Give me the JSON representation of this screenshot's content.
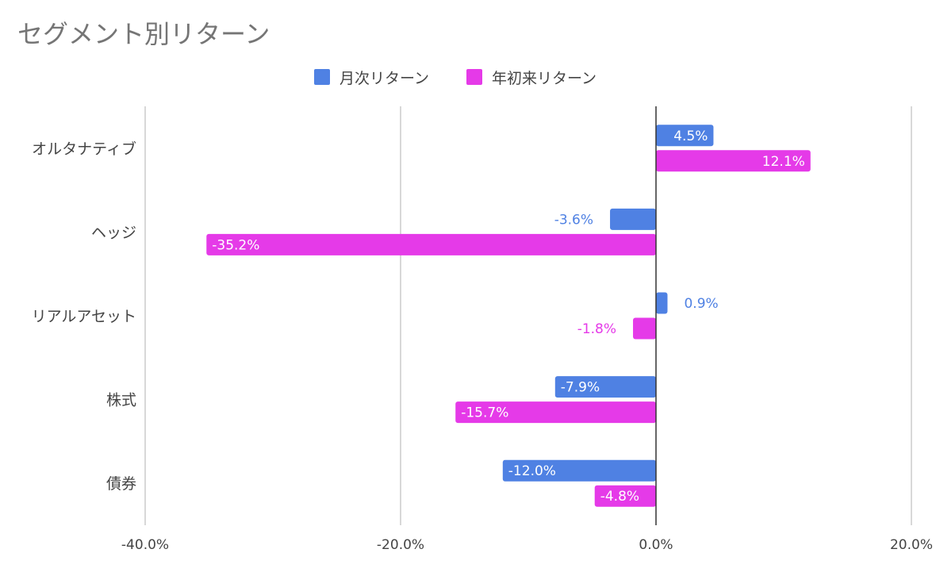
{
  "chart_data": {
    "type": "bar",
    "orientation": "horizontal",
    "title": "セグメント別リターン",
    "categories": [
      "オルタナティブ",
      "ヘッジ",
      "リアルアセット",
      "株式",
      "債券"
    ],
    "series": [
      {
        "name": "月次リターン",
        "color": "#4f81e3",
        "values": [
          4.5,
          -3.6,
          0.9,
          -7.9,
          -12.0
        ]
      },
      {
        "name": "年初来リターン",
        "color": "#e53ae8",
        "values": [
          12.1,
          -35.2,
          -1.8,
          -15.7,
          -4.8
        ]
      }
    ],
    "xlim": [
      -40,
      20
    ],
    "xticks": [
      -40,
      -20,
      0,
      20
    ],
    "xtick_labels": [
      "-40.0%",
      "-20.0%",
      "0.0%",
      "20.0%"
    ],
    "value_labels": [
      [
        "4.5%",
        "-3.6%",
        "0.9%",
        "-7.9%",
        "-12.0%"
      ],
      [
        "12.1%",
        "-35.2%",
        "-1.8%",
        "-15.7%",
        "-4.8%"
      ]
    ],
    "xlabel": "",
    "ylabel": "",
    "grid": true,
    "legend_position": "top-center"
  }
}
